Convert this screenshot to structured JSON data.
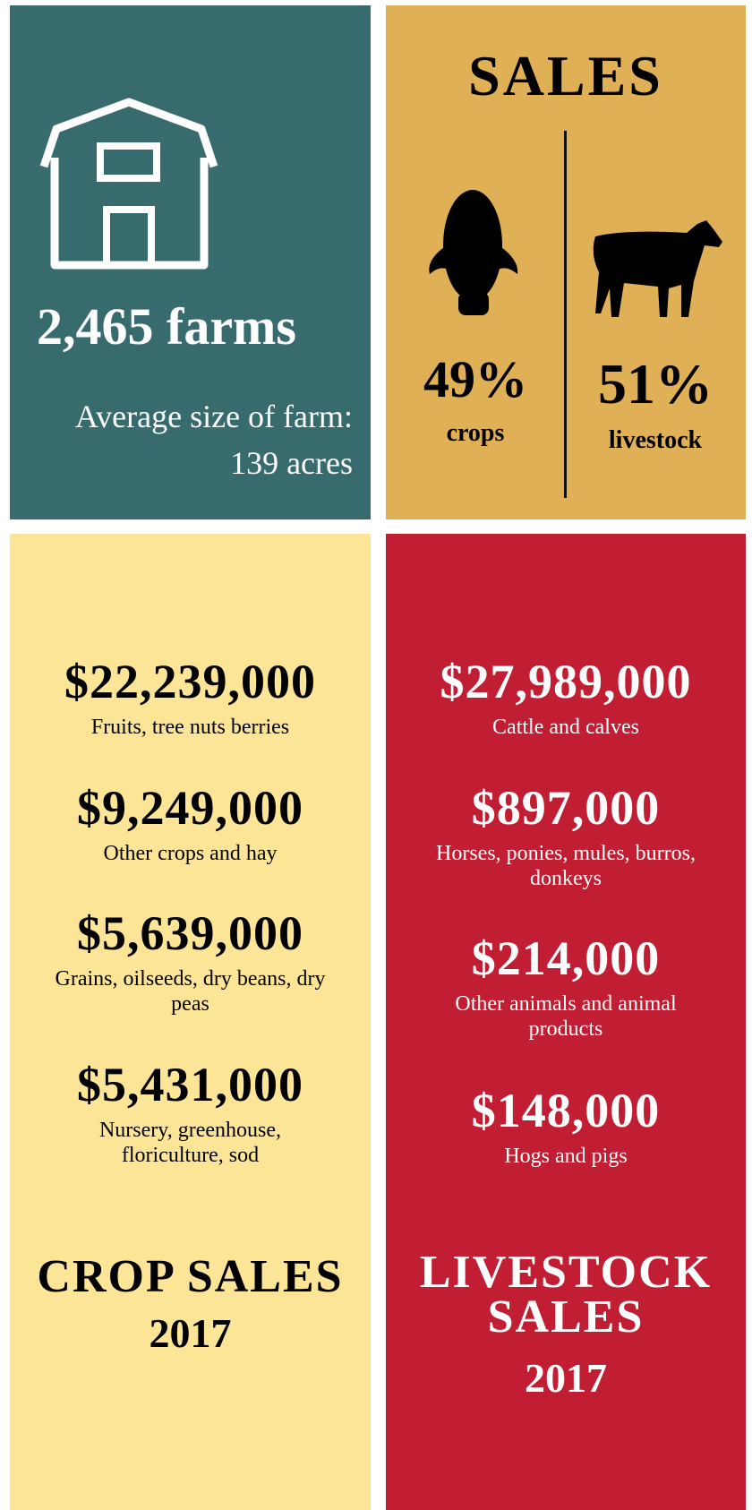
{
  "farms": {
    "count": "2,465 farms",
    "average_label": "Average size of farm:",
    "average_value": "139 acres"
  },
  "sales": {
    "title": "SALES",
    "crops": {
      "percent": "49%",
      "label": "crops"
    },
    "livestock": {
      "percent": "51%",
      "label": "livestock"
    }
  },
  "crop_sales": {
    "items": [
      {
        "amount": "$22,239,000",
        "label": "Fruits, tree nuts berries"
      },
      {
        "amount": "$9,249,000",
        "label": "Other crops and hay"
      },
      {
        "amount": "$5,639,000",
        "label": "Grains, oilseeds, dry beans, dry peas"
      },
      {
        "amount": "$5,431,000",
        "label": "Nursery, greenhouse, floriculture, sod"
      }
    ],
    "title": "CROP SALES",
    "year": "2017"
  },
  "livestock_sales": {
    "items": [
      {
        "amount": "$27,989,000",
        "label": "Cattle and calves"
      },
      {
        "amount": "$897,000",
        "label": "Horses, ponies, mules, burros, donkeys"
      },
      {
        "amount": "$214,000",
        "label": "Other animals and animal products"
      },
      {
        "amount": "$148,000",
        "label": "Hogs and pigs"
      }
    ],
    "title": "LIVESTOCK SALES",
    "year": "2017"
  }
}
